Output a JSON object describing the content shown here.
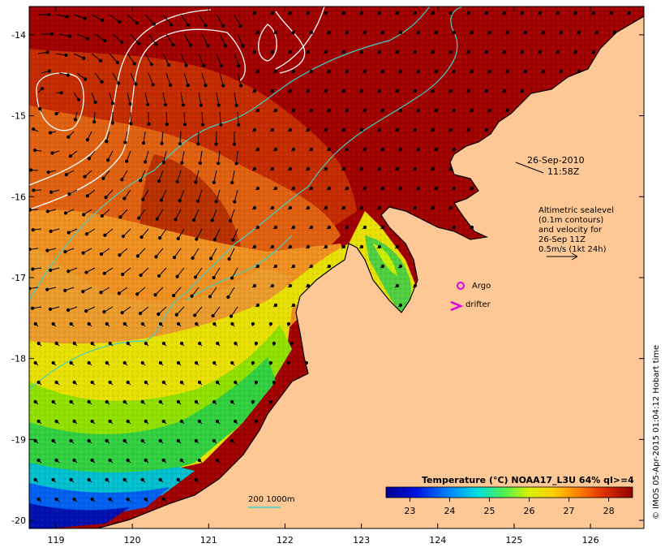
{
  "map": {
    "lon_ticks": [
      "119",
      "120",
      "121",
      "122",
      "123",
      "124",
      "125",
      "126"
    ],
    "lat_ticks": [
      "-14",
      "-15",
      "-16",
      "-17",
      "-18",
      "-19",
      "-20"
    ],
    "lon_range": [
      118.65,
      126.7
    ],
    "lat_range": [
      -20.1,
      -13.65
    ]
  },
  "annotations": {
    "date": "26-Sep-2010",
    "time": "11:58Z",
    "alt_line1": "Altimetric sealevel",
    "alt_line2": "(0.1m contours)",
    "alt_line3": "and velocity for",
    "alt_line4": "26-Sep 11Z",
    "alt_line5": "0.5m/s (1kt 24h)",
    "argo_label": "Argo",
    "drifter_label": "drifter",
    "depth_legend": "200  1000m"
  },
  "colorbar": {
    "title": "Temperature (°C) NOAA17_L3U 64% ql>=4",
    "ticks": [
      "23",
      "24",
      "25",
      "26",
      "27",
      "28"
    ],
    "range": [
      22.4,
      28.6
    ]
  },
  "credit": "© IMOS 05-Apr-2015 01:04:12 Hobart time",
  "colors": {
    "land": "#FDC896",
    "warm": "#9B0000",
    "contour_white": "#ffffff",
    "contour_cyan": "#40D0C8",
    "marker_magenta": "#E000E0"
  }
}
